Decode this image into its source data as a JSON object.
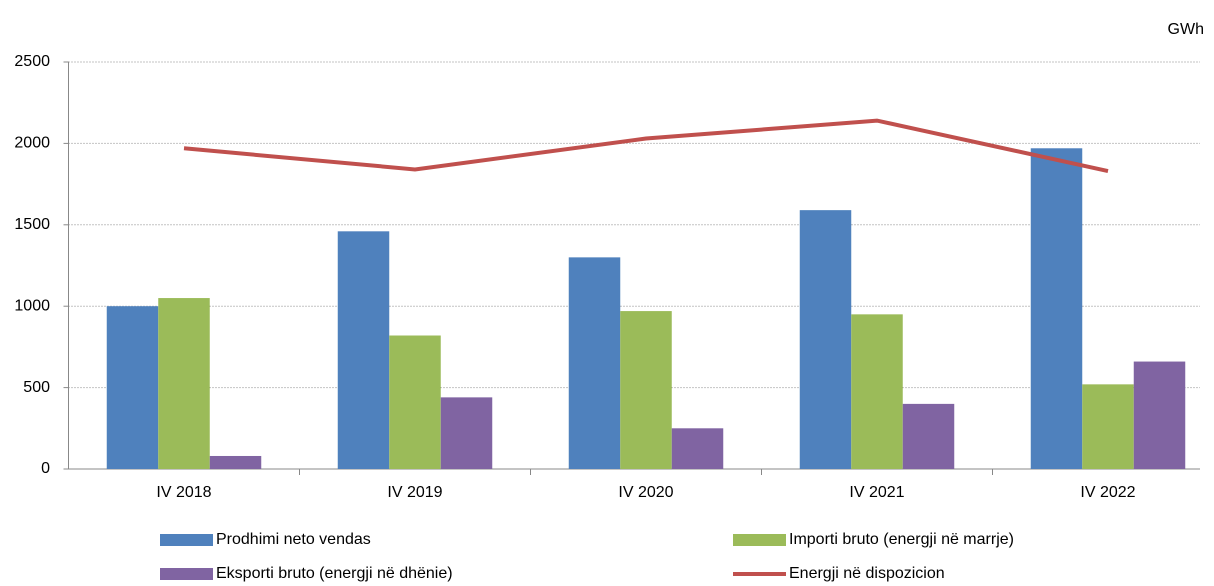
{
  "chart_data": {
    "type": "bar",
    "unit_label": "GWh",
    "categories": [
      "IV 2018",
      "IV 2019",
      "IV 2020",
      "IV 2021",
      "IV 2022"
    ],
    "series": [
      {
        "name": "Prodhimi neto vendas",
        "color": "#4f81bd",
        "values": [
          1000,
          1460,
          1300,
          1590,
          1970
        ]
      },
      {
        "name": "Importi bruto (energji në marrje)",
        "color": "#9bbb59",
        "values": [
          1050,
          820,
          970,
          950,
          520
        ]
      },
      {
        "name": "Eksporti bruto (energji në dhënie)",
        "color": "#8064a2",
        "values": [
          80,
          440,
          250,
          400,
          660
        ]
      },
      {
        "name": "Energji në dispozicion",
        "color": "#c0504d",
        "type": "line",
        "values": [
          1970,
          1840,
          2030,
          2140,
          1830
        ]
      }
    ],
    "ylim": [
      0,
      2500
    ],
    "yticks": [
      0,
      500,
      1000,
      1500,
      2000,
      2500
    ],
    "grid": true,
    "legend": "bottom"
  }
}
